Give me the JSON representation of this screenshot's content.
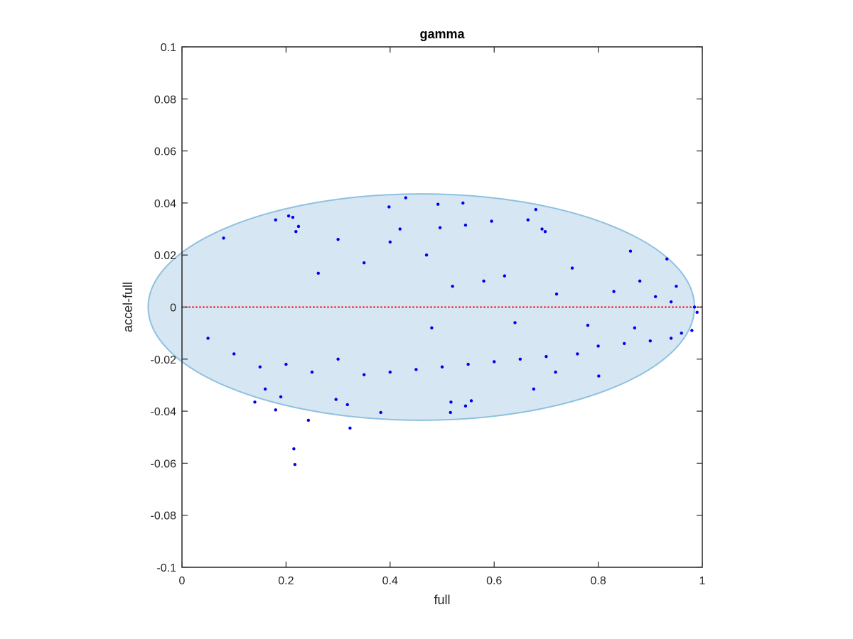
{
  "chart_data": {
    "type": "scatter",
    "title": "gamma",
    "xlabel": "full",
    "ylabel": "accel-full",
    "xlim": [
      0,
      1
    ],
    "ylim": [
      -0.1,
      0.1
    ],
    "xticks": [
      0,
      0.2,
      0.4,
      0.6,
      0.8,
      1
    ],
    "xtick_labels": [
      "0",
      "0.2",
      "0.4",
      "0.6",
      "0.8",
      "1"
    ],
    "yticks": [
      -0.1,
      -0.08,
      -0.06,
      -0.04,
      -0.02,
      0,
      0.02,
      0.04,
      0.06,
      0.08,
      0.1
    ],
    "ytick_labels": [
      "-0.1",
      "-0.08",
      "-0.06",
      "-0.04",
      "-0.02",
      "0",
      "0.02",
      "0.04",
      "0.06",
      "0.08",
      "0.1"
    ],
    "grid": false,
    "colors": {
      "points": "#0000ee",
      "ellipse_fill": "#d6e7f3",
      "ellipse_stroke": "#8ec1e0",
      "reference_line": "#ff0000",
      "axes": "#262626"
    },
    "ellipse": {
      "center": [
        0.46,
        0
      ],
      "x_half_width": 0.525,
      "y_half_height": 0.0435
    },
    "reference_line": {
      "y": 0,
      "x": [
        0,
        1
      ],
      "style": "dotted"
    },
    "series": [
      {
        "points": [
          [
            0.217,
            -0.0605
          ],
          [
            0.215,
            -0.0545
          ],
          [
            0.323,
            -0.0465
          ],
          [
            0.243,
            -0.0435
          ],
          [
            0.18,
            -0.0395
          ],
          [
            0.14,
            -0.0365
          ],
          [
            0.19,
            -0.0345
          ],
          [
            0.16,
            -0.0315
          ],
          [
            0.08,
            0.0265
          ],
          [
            0.18,
            0.0335
          ],
          [
            0.205,
            0.035
          ],
          [
            0.213,
            0.0345
          ],
          [
            0.224,
            0.031
          ],
          [
            0.219,
            0.029
          ],
          [
            0.43,
            0.042
          ],
          [
            0.398,
            0.0385
          ],
          [
            0.492,
            0.0395
          ],
          [
            0.68,
            0.0375
          ],
          [
            0.665,
            0.0335
          ],
          [
            0.595,
            0.033
          ],
          [
            0.545,
            0.0315
          ],
          [
            0.496,
            0.0305
          ],
          [
            0.419,
            0.03
          ],
          [
            0.698,
            0.029
          ],
          [
            0.692,
            0.03
          ],
          [
            0.862,
            0.0215
          ],
          [
            0.932,
            0.0185
          ],
          [
            0.4,
            0.025
          ],
          [
            0.54,
            0.04
          ],
          [
            0.516,
            -0.0405
          ],
          [
            0.382,
            -0.0405
          ],
          [
            0.545,
            -0.038
          ],
          [
            0.517,
            -0.0365
          ],
          [
            0.556,
            -0.036
          ],
          [
            0.318,
            -0.0375
          ],
          [
            0.296,
            -0.0355
          ],
          [
            0.801,
            -0.0265
          ],
          [
            0.676,
            -0.0315
          ],
          [
            0.718,
            -0.025
          ],
          [
            0.3,
            0.026
          ],
          [
            0.262,
            0.013
          ],
          [
            0.35,
            0.017
          ],
          [
            0.47,
            0.02
          ],
          [
            0.62,
            0.012
          ],
          [
            0.75,
            0.015
          ],
          [
            0.88,
            0.01
          ],
          [
            0.95,
            0.008
          ],
          [
            0.985,
            0.0
          ],
          [
            0.99,
            -0.002
          ],
          [
            0.98,
            -0.009
          ],
          [
            0.96,
            -0.01
          ],
          [
            0.94,
            -0.012
          ],
          [
            0.9,
            -0.013
          ],
          [
            0.85,
            -0.014
          ],
          [
            0.8,
            -0.015
          ],
          [
            0.76,
            -0.018
          ],
          [
            0.7,
            -0.019
          ],
          [
            0.65,
            -0.02
          ],
          [
            0.6,
            -0.021
          ],
          [
            0.55,
            -0.022
          ],
          [
            0.5,
            -0.023
          ],
          [
            0.45,
            -0.024
          ],
          [
            0.4,
            -0.025
          ],
          [
            0.35,
            -0.026
          ],
          [
            0.3,
            -0.02
          ],
          [
            0.25,
            -0.025
          ],
          [
            0.2,
            -0.022
          ],
          [
            0.15,
            -0.023
          ],
          [
            0.1,
            -0.018
          ],
          [
            0.05,
            -0.012
          ],
          [
            0.52,
            0.008
          ],
          [
            0.48,
            -0.008
          ],
          [
            0.58,
            0.01
          ],
          [
            0.64,
            -0.006
          ],
          [
            0.72,
            0.005
          ],
          [
            0.78,
            -0.007
          ],
          [
            0.83,
            0.006
          ],
          [
            0.87,
            -0.008
          ],
          [
            0.91,
            0.004
          ],
          [
            0.94,
            0.002
          ]
        ]
      }
    ]
  }
}
